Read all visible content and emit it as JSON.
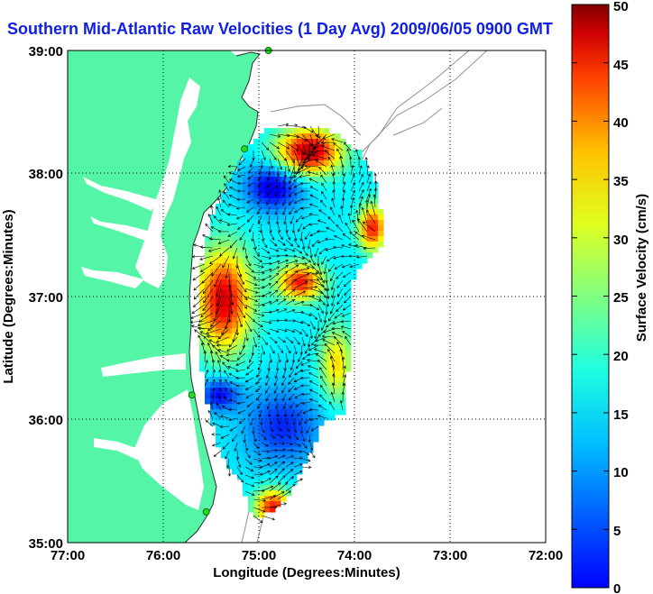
{
  "title": "Southern Mid-Atlantic Raw Velocities (1 Day Avg) 2009/06/05 0900 GMT",
  "map": {
    "xlabel": "Longitude (Degrees:Minutes)",
    "ylabel": "Latitude (Degrees:Minutes)",
    "xticks": [
      "77:00",
      "76:00",
      "75:00",
      "74:00",
      "73:00",
      "72:00"
    ],
    "yticks": [
      "39:00",
      "38:00",
      "37:00",
      "36:00",
      "35:00"
    ],
    "lon_range": [
      -77,
      -72
    ],
    "lat_range": [
      35,
      39
    ],
    "grid": "dotted",
    "land_color": "#55f5a8",
    "water_color": "#ffffff"
  },
  "colorbar": {
    "label": "Surface Velocity (cm/s)",
    "ticks": [
      "50",
      "45",
      "40",
      "35",
      "30",
      "25",
      "20",
      "15",
      "10",
      "5",
      "0"
    ],
    "range": [
      0,
      50
    ],
    "colormap": "jet"
  },
  "stations": [
    {
      "lon": -74.9,
      "lat": 39.0
    },
    {
      "lon": -75.15,
      "lat": 38.2
    },
    {
      "lon": -75.7,
      "lat": 36.2
    },
    {
      "lon": -75.55,
      "lat": 35.25
    }
  ]
}
